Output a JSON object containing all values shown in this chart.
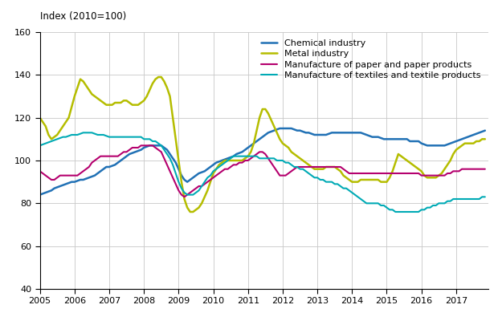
{
  "title": "Index (2010=100)",
  "xlim": [
    2005.0,
    2017.92
  ],
  "ylim": [
    40,
    160
  ],
  "yticks": [
    40,
    60,
    80,
    100,
    120,
    140,
    160
  ],
  "xticks": [
    2005,
    2006,
    2007,
    2008,
    2009,
    2010,
    2011,
    2012,
    2013,
    2014,
    2015,
    2016,
    2017
  ],
  "series": {
    "Chemical industry": {
      "color": "#2171b5",
      "linewidth": 1.8,
      "x": [
        2005.0,
        2005.083,
        2005.167,
        2005.25,
        2005.333,
        2005.417,
        2005.5,
        2005.583,
        2005.667,
        2005.75,
        2005.833,
        2005.917,
        2006.0,
        2006.083,
        2006.167,
        2006.25,
        2006.333,
        2006.417,
        2006.5,
        2006.583,
        2006.667,
        2006.75,
        2006.833,
        2006.917,
        2007.0,
        2007.083,
        2007.167,
        2007.25,
        2007.333,
        2007.417,
        2007.5,
        2007.583,
        2007.667,
        2007.75,
        2007.833,
        2007.917,
        2008.0,
        2008.083,
        2008.167,
        2008.25,
        2008.333,
        2008.417,
        2008.5,
        2008.583,
        2008.667,
        2008.75,
        2008.833,
        2008.917,
        2009.0,
        2009.083,
        2009.167,
        2009.25,
        2009.333,
        2009.417,
        2009.5,
        2009.583,
        2009.667,
        2009.75,
        2009.833,
        2009.917,
        2010.0,
        2010.083,
        2010.167,
        2010.25,
        2010.333,
        2010.417,
        2010.5,
        2010.583,
        2010.667,
        2010.75,
        2010.833,
        2010.917,
        2011.0,
        2011.083,
        2011.167,
        2011.25,
        2011.333,
        2011.417,
        2011.5,
        2011.583,
        2011.667,
        2011.75,
        2011.833,
        2011.917,
        2012.0,
        2012.083,
        2012.167,
        2012.25,
        2012.333,
        2012.417,
        2012.5,
        2012.583,
        2012.667,
        2012.75,
        2012.833,
        2012.917,
        2013.0,
        2013.083,
        2013.167,
        2013.25,
        2013.333,
        2013.417,
        2013.5,
        2013.583,
        2013.667,
        2013.75,
        2013.833,
        2013.917,
        2014.0,
        2014.083,
        2014.167,
        2014.25,
        2014.333,
        2014.417,
        2014.5,
        2014.583,
        2014.667,
        2014.75,
        2014.833,
        2014.917,
        2015.0,
        2015.083,
        2015.167,
        2015.25,
        2015.333,
        2015.417,
        2015.5,
        2015.583,
        2015.667,
        2015.75,
        2015.833,
        2015.917,
        2016.0,
        2016.083,
        2016.167,
        2016.25,
        2016.333,
        2016.417,
        2016.5,
        2016.583,
        2016.667,
        2016.75,
        2016.833,
        2016.917,
        2017.0,
        2017.083,
        2017.167,
        2017.25,
        2017.333,
        2017.417,
        2017.5,
        2017.583,
        2017.667,
        2017.75,
        2017.833
      ],
      "y": [
        84,
        84.5,
        85,
        85.5,
        86,
        87,
        87.5,
        88,
        88.5,
        89,
        89.5,
        90,
        90,
        90.5,
        91,
        91,
        91.5,
        92,
        92.5,
        93,
        94,
        95,
        96,
        97,
        97,
        97.5,
        98,
        99,
        100,
        101,
        102,
        103,
        103.5,
        104,
        104.5,
        105,
        106,
        106.5,
        107,
        107,
        107,
        107,
        107,
        106,
        105,
        103,
        101,
        99,
        96,
        93,
        91,
        90,
        91,
        92,
        93,
        94,
        94.5,
        95,
        96,
        97,
        98,
        99,
        99.5,
        100,
        100.5,
        101,
        101.5,
        102,
        103,
        103.5,
        104,
        105,
        106,
        107,
        108,
        109,
        110,
        111,
        112,
        113,
        113.5,
        114,
        114.5,
        115,
        115,
        115,
        115,
        115,
        114.5,
        114,
        114,
        113.5,
        113,
        113,
        112.5,
        112,
        112,
        112,
        112,
        112,
        112.5,
        113,
        113,
        113,
        113,
        113,
        113,
        113,
        113,
        113,
        113,
        113,
        112.5,
        112,
        111.5,
        111,
        111,
        111,
        110.5,
        110,
        110,
        110,
        110,
        110,
        110,
        110,
        110,
        110,
        109,
        109,
        109,
        109,
        108,
        107.5,
        107,
        107,
        107,
        107,
        107,
        107,
        107,
        107.5,
        108,
        108.5,
        109,
        109.5,
        110,
        110.5,
        111,
        111.5,
        112,
        112.5,
        113,
        113.5,
        114
      ]
    },
    "Metal industry": {
      "color": "#b5bd00",
      "linewidth": 1.8,
      "x": [
        2005.0,
        2005.083,
        2005.167,
        2005.25,
        2005.333,
        2005.417,
        2005.5,
        2005.583,
        2005.667,
        2005.75,
        2005.833,
        2005.917,
        2006.0,
        2006.083,
        2006.167,
        2006.25,
        2006.333,
        2006.417,
        2006.5,
        2006.583,
        2006.667,
        2006.75,
        2006.833,
        2006.917,
        2007.0,
        2007.083,
        2007.167,
        2007.25,
        2007.333,
        2007.417,
        2007.5,
        2007.583,
        2007.667,
        2007.75,
        2007.833,
        2007.917,
        2008.0,
        2008.083,
        2008.167,
        2008.25,
        2008.333,
        2008.417,
        2008.5,
        2008.583,
        2008.667,
        2008.75,
        2008.833,
        2008.917,
        2009.0,
        2009.083,
        2009.167,
        2009.25,
        2009.333,
        2009.417,
        2009.5,
        2009.583,
        2009.667,
        2009.75,
        2009.833,
        2009.917,
        2010.0,
        2010.083,
        2010.167,
        2010.25,
        2010.333,
        2010.417,
        2010.5,
        2010.583,
        2010.667,
        2010.75,
        2010.833,
        2010.917,
        2011.0,
        2011.083,
        2011.167,
        2011.25,
        2011.333,
        2011.417,
        2011.5,
        2011.583,
        2011.667,
        2011.75,
        2011.833,
        2011.917,
        2012.0,
        2012.083,
        2012.167,
        2012.25,
        2012.333,
        2012.417,
        2012.5,
        2012.583,
        2012.667,
        2012.75,
        2012.833,
        2012.917,
        2013.0,
        2013.083,
        2013.167,
        2013.25,
        2013.333,
        2013.417,
        2013.5,
        2013.583,
        2013.667,
        2013.75,
        2013.833,
        2013.917,
        2014.0,
        2014.083,
        2014.167,
        2014.25,
        2014.333,
        2014.417,
        2014.5,
        2014.583,
        2014.667,
        2014.75,
        2014.833,
        2014.917,
        2015.0,
        2015.083,
        2015.167,
        2015.25,
        2015.333,
        2015.417,
        2015.5,
        2015.583,
        2015.667,
        2015.75,
        2015.833,
        2015.917,
        2016.0,
        2016.083,
        2016.167,
        2016.25,
        2016.333,
        2016.417,
        2016.5,
        2016.583,
        2016.667,
        2016.75,
        2016.833,
        2016.917,
        2017.0,
        2017.083,
        2017.167,
        2017.25,
        2017.333,
        2017.417,
        2017.5,
        2017.583,
        2017.667,
        2017.75,
        2017.833
      ],
      "y": [
        120,
        118,
        116,
        112,
        110,
        111,
        112,
        114,
        116,
        118,
        120,
        125,
        130,
        134,
        138,
        137,
        135,
        133,
        131,
        130,
        129,
        128,
        127,
        126,
        126,
        126,
        127,
        127,
        127,
        128,
        128,
        127,
        126,
        126,
        126,
        127,
        128,
        130,
        133,
        136,
        138,
        139,
        139,
        137,
        134,
        130,
        120,
        110,
        100,
        90,
        82,
        78,
        76,
        76,
        77,
        78,
        80,
        83,
        86,
        90,
        94,
        96,
        98,
        99,
        100,
        100,
        100,
        100,
        100,
        100,
        100,
        101,
        102,
        104,
        108,
        114,
        120,
        124,
        124,
        122,
        119,
        116,
        113,
        110,
        108,
        107,
        106,
        104,
        103,
        102,
        101,
        100,
        99,
        98,
        97,
        96,
        96,
        96,
        96,
        97,
        97,
        97,
        97,
        96,
        95,
        93,
        92,
        91,
        90,
        90,
        90,
        91,
        91,
        91,
        91,
        91,
        91,
        91,
        90,
        90,
        90,
        92,
        95,
        99,
        103,
        102,
        101,
        100,
        99,
        98,
        97,
        96,
        95,
        93,
        92,
        92,
        92,
        92,
        93,
        94,
        96,
        98,
        100,
        103,
        105,
        106,
        107,
        108,
        108,
        108,
        108,
        109,
        109,
        110,
        110
      ]
    },
    "Manufacture of paper and paper products": {
      "color": "#b5006e",
      "linewidth": 1.5,
      "x": [
        2005.0,
        2005.083,
        2005.167,
        2005.25,
        2005.333,
        2005.417,
        2005.5,
        2005.583,
        2005.667,
        2005.75,
        2005.833,
        2005.917,
        2006.0,
        2006.083,
        2006.167,
        2006.25,
        2006.333,
        2006.417,
        2006.5,
        2006.583,
        2006.667,
        2006.75,
        2006.833,
        2006.917,
        2007.0,
        2007.083,
        2007.167,
        2007.25,
        2007.333,
        2007.417,
        2007.5,
        2007.583,
        2007.667,
        2007.75,
        2007.833,
        2007.917,
        2008.0,
        2008.083,
        2008.167,
        2008.25,
        2008.333,
        2008.417,
        2008.5,
        2008.583,
        2008.667,
        2008.75,
        2008.833,
        2008.917,
        2009.0,
        2009.083,
        2009.167,
        2009.25,
        2009.333,
        2009.417,
        2009.5,
        2009.583,
        2009.667,
        2009.75,
        2009.833,
        2009.917,
        2010.0,
        2010.083,
        2010.167,
        2010.25,
        2010.333,
        2010.417,
        2010.5,
        2010.583,
        2010.667,
        2010.75,
        2010.833,
        2010.917,
        2011.0,
        2011.083,
        2011.167,
        2011.25,
        2011.333,
        2011.417,
        2011.5,
        2011.583,
        2011.667,
        2011.75,
        2011.833,
        2011.917,
        2012.0,
        2012.083,
        2012.167,
        2012.25,
        2012.333,
        2012.417,
        2012.5,
        2012.583,
        2012.667,
        2012.75,
        2012.833,
        2012.917,
        2013.0,
        2013.083,
        2013.167,
        2013.25,
        2013.333,
        2013.417,
        2013.5,
        2013.583,
        2013.667,
        2013.75,
        2013.833,
        2013.917,
        2014.0,
        2014.083,
        2014.167,
        2014.25,
        2014.333,
        2014.417,
        2014.5,
        2014.583,
        2014.667,
        2014.75,
        2014.833,
        2014.917,
        2015.0,
        2015.083,
        2015.167,
        2015.25,
        2015.333,
        2015.417,
        2015.5,
        2015.583,
        2015.667,
        2015.75,
        2015.833,
        2015.917,
        2016.0,
        2016.083,
        2016.167,
        2016.25,
        2016.333,
        2016.417,
        2016.5,
        2016.583,
        2016.667,
        2016.75,
        2016.833,
        2016.917,
        2017.0,
        2017.083,
        2017.167,
        2017.25,
        2017.333,
        2017.417,
        2017.5,
        2017.583,
        2017.667,
        2017.75,
        2017.833
      ],
      "y": [
        95,
        94,
        93,
        92,
        91,
        91,
        92,
        93,
        93,
        93,
        93,
        93,
        93,
        93,
        94,
        95,
        96,
        97,
        99,
        100,
        101,
        102,
        102,
        102,
        102,
        102,
        102,
        102,
        103,
        104,
        104,
        105,
        106,
        106,
        106,
        107,
        107,
        107,
        107,
        107,
        106,
        105,
        104,
        101,
        98,
        95,
        92,
        89,
        86,
        84,
        83,
        84,
        85,
        86,
        87,
        88,
        88,
        89,
        90,
        91,
        92,
        93,
        94,
        95,
        96,
        96,
        97,
        98,
        98,
        99,
        99,
        100,
        100,
        101,
        102,
        103,
        104,
        104,
        103,
        101,
        99,
        97,
        95,
        93,
        93,
        93,
        94,
        95,
        96,
        97,
        97,
        97,
        97,
        97,
        97,
        97,
        97,
        97,
        97,
        97,
        97,
        97,
        97,
        97,
        97,
        96,
        95,
        94,
        94,
        94,
        94,
        94,
        94,
        94,
        94,
        94,
        94,
        94,
        94,
        94,
        94,
        94,
        94,
        94,
        94,
        94,
        94,
        94,
        94,
        94,
        94,
        94,
        93,
        93,
        93,
        93,
        93,
        93,
        93,
        93,
        93,
        94,
        94,
        95,
        95,
        95,
        96,
        96,
        96,
        96,
        96,
        96,
        96,
        96,
        96
      ]
    },
    "Manufacture of textiles and textile products": {
      "color": "#00aab5",
      "linewidth": 1.5,
      "x": [
        2005.0,
        2005.083,
        2005.167,
        2005.25,
        2005.333,
        2005.417,
        2005.5,
        2005.583,
        2005.667,
        2005.75,
        2005.833,
        2005.917,
        2006.0,
        2006.083,
        2006.167,
        2006.25,
        2006.333,
        2006.417,
        2006.5,
        2006.583,
        2006.667,
        2006.75,
        2006.833,
        2006.917,
        2007.0,
        2007.083,
        2007.167,
        2007.25,
        2007.333,
        2007.417,
        2007.5,
        2007.583,
        2007.667,
        2007.75,
        2007.833,
        2007.917,
        2008.0,
        2008.083,
        2008.167,
        2008.25,
        2008.333,
        2008.417,
        2008.5,
        2008.583,
        2008.667,
        2008.75,
        2008.833,
        2008.917,
        2009.0,
        2009.083,
        2009.167,
        2009.25,
        2009.333,
        2009.417,
        2009.5,
        2009.583,
        2009.667,
        2009.75,
        2009.833,
        2009.917,
        2010.0,
        2010.083,
        2010.167,
        2010.25,
        2010.333,
        2010.417,
        2010.5,
        2010.583,
        2010.667,
        2010.75,
        2010.833,
        2010.917,
        2011.0,
        2011.083,
        2011.167,
        2011.25,
        2011.333,
        2011.417,
        2011.5,
        2011.583,
        2011.667,
        2011.75,
        2011.833,
        2011.917,
        2012.0,
        2012.083,
        2012.167,
        2012.25,
        2012.333,
        2012.417,
        2012.5,
        2012.583,
        2012.667,
        2012.75,
        2012.833,
        2012.917,
        2013.0,
        2013.083,
        2013.167,
        2013.25,
        2013.333,
        2013.417,
        2013.5,
        2013.583,
        2013.667,
        2013.75,
        2013.833,
        2013.917,
        2014.0,
        2014.083,
        2014.167,
        2014.25,
        2014.333,
        2014.417,
        2014.5,
        2014.583,
        2014.667,
        2014.75,
        2014.833,
        2014.917,
        2015.0,
        2015.083,
        2015.167,
        2015.25,
        2015.333,
        2015.417,
        2015.5,
        2015.583,
        2015.667,
        2015.75,
        2015.833,
        2015.917,
        2016.0,
        2016.083,
        2016.167,
        2016.25,
        2016.333,
        2016.417,
        2016.5,
        2016.583,
        2016.667,
        2016.75,
        2016.833,
        2016.917,
        2017.0,
        2017.083,
        2017.167,
        2017.25,
        2017.333,
        2017.417,
        2017.5,
        2017.583,
        2017.667,
        2017.75,
        2017.833
      ],
      "y": [
        107,
        107.5,
        108,
        108.5,
        109,
        109.5,
        110,
        110.5,
        111,
        111,
        111.5,
        112,
        112,
        112,
        112.5,
        113,
        113,
        113,
        113,
        112.5,
        112,
        112,
        112,
        111.5,
        111,
        111,
        111,
        111,
        111,
        111,
        111,
        111,
        111,
        111,
        111,
        111,
        110,
        110,
        110,
        109,
        109,
        108,
        107,
        105,
        103,
        101,
        98,
        94,
        90,
        87,
        85,
        84,
        84,
        84,
        85,
        86,
        88,
        90,
        92,
        93,
        95,
        96,
        97,
        98,
        99,
        100,
        101,
        102,
        102,
        102,
        102,
        102,
        102,
        102,
        102,
        102,
        101,
        101,
        101,
        101,
        101,
        101,
        100,
        100,
        100,
        99,
        99,
        98,
        97,
        97,
        96,
        96,
        95,
        94,
        93,
        92,
        92,
        91,
        91,
        90,
        90,
        90,
        89,
        89,
        88,
        87,
        87,
        86,
        85,
        84,
        83,
        82,
        81,
        80,
        80,
        80,
        80,
        80,
        79,
        79,
        78,
        77,
        77,
        76,
        76,
        76,
        76,
        76,
        76,
        76,
        76,
        76,
        77,
        77,
        78,
        78,
        79,
        79,
        80,
        80,
        80,
        81,
        81,
        82,
        82,
        82,
        82,
        82,
        82,
        82,
        82,
        82,
        82,
        83,
        83
      ]
    }
  },
  "legend_fontsize": 8,
  "grid_color": "#c8c8c8",
  "bg_color": "#ffffff",
  "label_color": "#000000",
  "title_fontsize": 8.5,
  "tick_fontsize": 8
}
